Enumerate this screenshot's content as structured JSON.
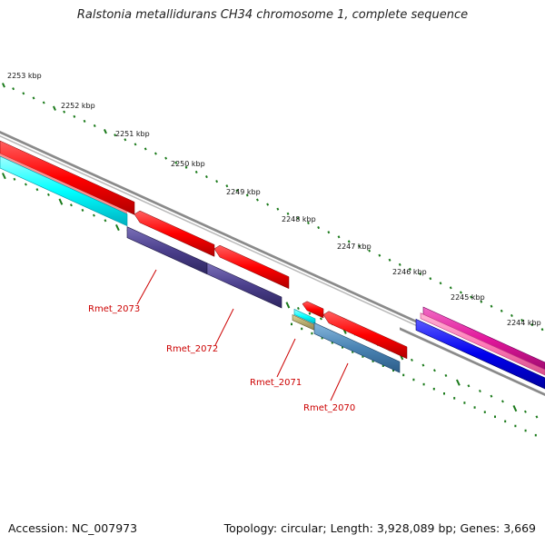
{
  "title": "Ralstonia metallidurans CH34 chromosome 1, complete sequence",
  "accession": "Accession: NC_007973",
  "summary": "Topology: circular; Length: 3,928,089 bp; Genes: 3,669",
  "ticks": [
    {
      "label": "2253 kbp"
    },
    {
      "label": "2252 kbp"
    },
    {
      "label": "2251 kbp"
    },
    {
      "label": "2250 kbp"
    },
    {
      "label": "2249 kbp"
    },
    {
      "label": "2248 kbp"
    },
    {
      "label": "2247 kbp"
    },
    {
      "label": "2246 kbp"
    },
    {
      "label": "2245 kbp"
    },
    {
      "label": "2244 kbp"
    }
  ],
  "gene_labels": [
    {
      "label": "Rmet_2073"
    },
    {
      "label": "Rmet_2072"
    },
    {
      "label": "Rmet_2071"
    },
    {
      "label": "Rmet_2070"
    }
  ],
  "colors": {
    "backbone": "#8a8a8a",
    "cds": "#ff0000",
    "rna": "#00ffff",
    "cog_purple": "#4b3f8c",
    "cog_steel": "#4a84b4",
    "cog_tan": "#b8ad70",
    "cog_magenta": "#e2179c",
    "cog_pink": "#ff7ab8",
    "cog_blue": "#0000ee",
    "tick": "#1a7a1a",
    "label": "#cc0000"
  }
}
